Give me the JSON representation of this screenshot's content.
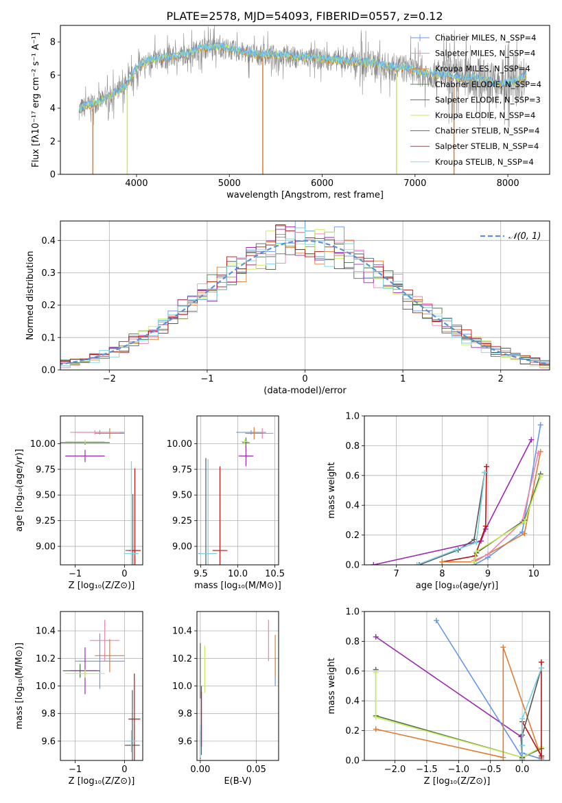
{
  "figure_title": "PLATE=2578, MJD=54093, FIBERID=0557, z=0.12",
  "colors": {
    "chabrier_miles": "#6495ed",
    "salpeter_miles": "#ee82a8",
    "kroupa_miles": "#e07b30",
    "chabrier_elodie": "#4f6f4f",
    "salpeter_elodie": "#9a28b0",
    "kroupa_elodie": "#c8ec5a",
    "chabrier_stelib": "#555555",
    "salpeter_stelib": "#b51414",
    "kroupa_stelib": "#78d2e0",
    "gaussian": "#5b8fd6",
    "grid": "#b0b0b0"
  },
  "chart_data": [
    {
      "id": "spectrum",
      "type": "line",
      "xlabel": "wavelength [Angstrom, rest frame]",
      "ylabel": "Flux [fλ10⁻¹⁷ erg cm⁻² s⁻¹ A⁻¹]",
      "xlim": [
        3180,
        8450
      ],
      "ylim": [
        0,
        9
      ],
      "xticks": [
        4000,
        5000,
        6000,
        7000,
        8000
      ],
      "yticks": [
        0,
        2,
        4,
        6,
        8
      ],
      "grid": false,
      "legend_position": "right",
      "legend": [
        "Chabrier MILES, N_SSP=4",
        "Salpeter MILES, N_SSP=4",
        "Kroupa MILES, N_SSP=4",
        "Chabrier ELODIE, N_SSP=4",
        "Salpeter ELODIE, N_SSP=3",
        "Kroupa ELODIE, N_SSP=4",
        "Chabrier STELIB, N_SSP=4",
        "Salpeter STELIB, N_SSP=4",
        "Kroupa STELIB, N_SSP=4"
      ],
      "continuum": [
        [
          3380,
          3.9
        ],
        [
          3500,
          4.2
        ],
        [
          3650,
          4.5
        ],
        [
          3800,
          5.0
        ],
        [
          3900,
          5.4
        ],
        [
          4000,
          6.4
        ],
        [
          4150,
          6.9
        ],
        [
          4300,
          7.0
        ],
        [
          4500,
          7.2
        ],
        [
          4700,
          7.6
        ],
        [
          4900,
          7.7
        ],
        [
          5100,
          7.4
        ],
        [
          5300,
          7.2
        ],
        [
          5500,
          7.2
        ],
        [
          5700,
          7.1
        ],
        [
          5900,
          7.0
        ],
        [
          6100,
          6.9
        ],
        [
          6300,
          6.8
        ],
        [
          6500,
          6.7
        ],
        [
          6700,
          6.5
        ],
        [
          6900,
          6.4
        ],
        [
          7100,
          6.1
        ],
        [
          7300,
          6.0
        ],
        [
          7500,
          5.8
        ],
        [
          7700,
          5.8
        ],
        [
          7900,
          5.4
        ],
        [
          8000,
          5.5
        ],
        [
          8100,
          5.6
        ],
        [
          8200,
          6.0
        ]
      ],
      "dropouts": [
        {
          "x": 3530,
          "series": "kroupa_miles"
        },
        {
          "x": 3900,
          "series": "kroupa_elodie"
        },
        {
          "x": 5360,
          "series": "kroupa_miles"
        },
        {
          "x": 6800,
          "series": "kroupa_elodie"
        },
        {
          "x": 7420,
          "series": "kroupa_miles"
        }
      ]
    },
    {
      "id": "residuals",
      "type": "line",
      "xlabel": "(data-model)/error",
      "ylabel": "Normed distribution",
      "xlim": [
        -2.5,
        2.5
      ],
      "ylim": [
        0,
        0.46
      ],
      "xticks": [
        -2,
        -1,
        0,
        1,
        2
      ],
      "yticks": [
        0.0,
        0.1,
        0.2,
        0.3,
        0.4
      ],
      "grid": true,
      "legend_position": "top-right",
      "legend": [
        "𝒩(0, 1)"
      ],
      "bin_width": 0.1
    },
    {
      "id": "z_age",
      "type": "scatter",
      "xlabel": "Z [log₁₀(Z/Z⊙)]",
      "ylabel": "age  [log₁₀(age/yr)]",
      "xlim": [
        -1.3,
        0.37
      ],
      "ylim": [
        8.82,
        10.27
      ],
      "xticks": [
        -1,
        0
      ],
      "yticks": [
        9.0,
        9.25,
        9.5,
        9.75,
        10.0
      ],
      "grid": true,
      "points": [
        {
          "series": "chabrier_miles",
          "x": -0.5,
          "y": 10.11,
          "xerr": 0.5,
          "yerr": 0.02
        },
        {
          "series": "salpeter_miles",
          "x": -0.6,
          "y": 10.11,
          "xerr": 0.5,
          "yerr": 0.02
        },
        {
          "series": "kroupa_miles",
          "x": -0.3,
          "y": 10.1,
          "xerr": 0.3,
          "yerr": 0.05
        },
        {
          "series": "chabrier_elodie",
          "x": -0.8,
          "y": 10.01,
          "xerr": 0.5,
          "yerr": 0.02
        },
        {
          "series": "salpeter_elodie",
          "x": -0.8,
          "y": 9.88,
          "xerr": 0.4,
          "yerr": 0.06
        },
        {
          "series": "kroupa_elodie",
          "x": -0.8,
          "y": 10.02,
          "xerr": 0.4,
          "yerr": 0.02
        },
        {
          "series": "chabrier_stelib",
          "x": 0.17,
          "y": 8.96,
          "xerr": 0.15,
          "yerr": 0.55
        },
        {
          "series": "salpeter_stelib",
          "x": 0.21,
          "y": 8.96,
          "xerr": 0.12,
          "yerr": 0.8
        },
        {
          "series": "kroupa_stelib",
          "x": 0.14,
          "y": 8.93,
          "xerr": 0.15,
          "yerr": 0.9
        }
      ]
    },
    {
      "id": "mass_age",
      "type": "scatter",
      "xlabel": "mass [log₁₀(M/M⊙)]",
      "ylabel": "",
      "xlim": [
        9.45,
        10.55
      ],
      "ylim": [
        8.82,
        10.27
      ],
      "xticks": [
        9.5,
        10.0,
        10.5
      ],
      "yticks": [
        9.0,
        9.25,
        9.5,
        9.75,
        10.0
      ],
      "grid": true,
      "points": [
        {
          "series": "chabrier_miles",
          "x": 10.18,
          "y": 10.11,
          "xerr": 0.2,
          "yerr": 0.02
        },
        {
          "series": "salpeter_miles",
          "x": 10.33,
          "y": 10.1,
          "xerr": 0.15,
          "yerr": 0.05
        },
        {
          "series": "kroupa_miles",
          "x": 10.22,
          "y": 10.1,
          "xerr": 0.12,
          "yerr": 0.06
        },
        {
          "series": "chabrier_elodie",
          "x": 10.11,
          "y": 10.01,
          "xerr": 0.05,
          "yerr": 0.05
        },
        {
          "series": "salpeter_elodie",
          "x": 10.11,
          "y": 9.88,
          "xerr": 0.1,
          "yerr": 0.1
        },
        {
          "series": "kroupa_elodie",
          "x": 10.09,
          "y": 10.02,
          "xerr": 0.05,
          "yerr": 0.02
        },
        {
          "series": "chabrier_stelib",
          "x": 9.57,
          "y": 8.93,
          "xerr": 0.1,
          "yerr": 0.93
        },
        {
          "series": "salpeter_stelib",
          "x": 9.76,
          "y": 8.96,
          "xerr": 0.1,
          "yerr": 0.82
        },
        {
          "series": "kroupa_stelib",
          "x": 9.6,
          "y": 8.93,
          "xerr": 0.12,
          "yerr": 0.92
        }
      ]
    },
    {
      "id": "age_weight",
      "type": "line",
      "xlabel": "age  [log₁₀(age/yr)]",
      "ylabel": "mass weight",
      "xlim": [
        6.3,
        10.35
      ],
      "ylim": [
        0,
        1.0
      ],
      "xticks": [
        7,
        8,
        9,
        10
      ],
      "yticks": [
        0.0,
        0.2,
        0.4,
        0.6,
        0.8,
        1.0
      ],
      "grid": true,
      "series": [
        {
          "key": "salpeter_elodie",
          "x": [
            6.5,
            8.85,
            8.95,
            9.95
          ],
          "y": [
            0.0,
            0.16,
            0.24,
            0.84
          ]
        },
        {
          "key": "salpeter_stelib",
          "x": [
            8.0,
            8.72,
            8.95,
            8.97
          ],
          "y": [
            0.02,
            0.06,
            0.26,
            0.66
          ]
        },
        {
          "key": "chabrier_stelib",
          "x": [
            7.5,
            8.35,
            8.7,
            8.93
          ],
          "y": [
            0.0,
            0.1,
            0.17,
            0.62
          ]
        },
        {
          "key": "kroupa_stelib",
          "x": [
            7.45,
            8.3,
            8.75,
            8.93
          ],
          "y": [
            0.0,
            0.1,
            0.15,
            0.62
          ]
        },
        {
          "key": "chabrier_miles",
          "x": [
            8.7,
            9.0,
            9.75,
            10.15
          ],
          "y": [
            0.0,
            0.05,
            0.22,
            0.94
          ]
        },
        {
          "key": "kroupa_miles",
          "x": [
            8.0,
            8.7,
            9.8,
            10.15
          ],
          "y": [
            0.02,
            0.02,
            0.21,
            0.76
          ]
        },
        {
          "key": "salpeter_miles",
          "x": [
            8.7,
            9.0,
            9.75,
            10.1
          ],
          "y": [
            0.03,
            0.07,
            0.29,
            0.75
          ]
        },
        {
          "key": "chabrier_elodie",
          "x": [
            8.7,
            8.75,
            9.8,
            10.15
          ],
          "y": [
            0.02,
            0.08,
            0.3,
            0.61
          ]
        },
        {
          "key": "kroupa_elodie",
          "x": [
            8.7,
            8.75,
            9.8,
            10.15
          ],
          "y": [
            0.02,
            0.09,
            0.29,
            0.59
          ]
        }
      ]
    },
    {
      "id": "z_mass",
      "type": "scatter",
      "xlabel": "Z [log₁₀(Z/Z⊙)]",
      "ylabel": "mass [log₁₀(M/M⊙)]",
      "xlim": [
        -1.3,
        0.37
      ],
      "ylim": [
        9.46,
        10.54
      ],
      "xticks": [
        -1,
        0
      ],
      "yticks": [
        9.6,
        9.8,
        10.0,
        10.2,
        10.4
      ],
      "grid": true,
      "points": [
        {
          "series": "chabrier_miles",
          "x": -0.5,
          "y": 10.18,
          "xerr": 0.5,
          "yerr": 0.2
        },
        {
          "series": "salpeter_miles",
          "x": -0.4,
          "y": 10.33,
          "xerr": 0.3,
          "yerr": 0.15
        },
        {
          "series": "kroupa_miles",
          "x": -0.3,
          "y": 10.22,
          "xerr": 0.3,
          "yerr": 0.12
        },
        {
          "series": "chabrier_elodie",
          "x": -0.9,
          "y": 10.11,
          "xerr": 0.35,
          "yerr": 0.05
        },
        {
          "series": "salpeter_elodie",
          "x": -0.8,
          "y": 10.11,
          "xerr": 0.3,
          "yerr": 0.17
        },
        {
          "series": "kroupa_elodie",
          "x": -0.8,
          "y": 10.09,
          "xerr": 0.4,
          "yerr": 0.03
        },
        {
          "series": "chabrier_stelib",
          "x": 0.16,
          "y": 9.57,
          "xerr": 0.15,
          "yerr": 0.4
        },
        {
          "series": "salpeter_stelib",
          "x": 0.2,
          "y": 9.76,
          "xerr": 0.12,
          "yerr": 0.33
        },
        {
          "series": "kroupa_stelib",
          "x": 0.14,
          "y": 9.6,
          "xerr": 0.12,
          "yerr": 0.08
        }
      ]
    },
    {
      "id": "ebv_mass",
      "type": "scatter",
      "xlabel": "E(B-V)",
      "ylabel": "",
      "xlim": [
        -0.003,
        0.07
      ],
      "ylim": [
        9.46,
        10.54
      ],
      "xticks": [
        0.0,
        0.05
      ],
      "yticks": [
        9.6,
        9.8,
        10.0,
        10.2,
        10.4
      ],
      "grid": true,
      "points": [
        {
          "series": "chabrier_miles",
          "x": 0.067,
          "y": 10.1,
          "xerr": 0,
          "yerr": 0.1
        },
        {
          "series": "salpeter_miles",
          "x": 0.061,
          "y": 10.33,
          "xerr": 0,
          "yerr": 0.15
        },
        {
          "series": "kroupa_miles",
          "x": 0.067,
          "y": 10.22,
          "xerr": 0,
          "yerr": 0.15
        },
        {
          "series": "chabrier_elodie",
          "x": 0.0,
          "y": 10.11,
          "xerr": 0,
          "yerr": 0.2
        },
        {
          "series": "salpeter_elodie",
          "x": 0.001,
          "y": 9.75,
          "xerr": 0,
          "yerr": 0.25
        },
        {
          "series": "kroupa_elodie",
          "x": 0.004,
          "y": 10.12,
          "xerr": 0,
          "yerr": 0.17
        },
        {
          "series": "chabrier_stelib",
          "x": 0.0,
          "y": 9.57,
          "xerr": 0,
          "yerr": 0.1
        },
        {
          "series": "salpeter_stelib",
          "x": 0.001,
          "y": 9.76,
          "xerr": 0,
          "yerr": 0.2
        },
        {
          "series": "kroupa_stelib",
          "x": 0.0,
          "y": 9.6,
          "xerr": 0,
          "yerr": 0.12
        }
      ]
    },
    {
      "id": "z_weight",
      "type": "line",
      "xlabel": "Z [log₁₀(Z/Z⊙)]",
      "ylabel": "mass weight",
      "xlim": [
        -2.48,
        0.43
      ],
      "ylim": [
        0,
        1.0
      ],
      "xticks": [
        -2.0,
        -1.5,
        -1.0,
        -0.5,
        0.0
      ],
      "yticks": [
        0.0,
        0.2,
        0.4,
        0.6,
        0.8,
        1.0
      ],
      "grid": true,
      "series": [
        {
          "key": "salpeter_elodie",
          "x": [
            -2.3,
            -0.02,
            0.0,
            0.0
          ],
          "y": [
            0.83,
            0.16,
            0.01,
            0.0
          ]
        },
        {
          "key": "chabrier_miles",
          "x": [
            -1.35,
            0.0,
            0.0,
            0.3
          ],
          "y": [
            0.94,
            0.02,
            0.05,
            0.01
          ]
        },
        {
          "key": "chabrier_elodie",
          "x": [
            -2.3,
            -2.3,
            0.0,
            0.3
          ],
          "y": [
            0.61,
            0.3,
            0.02,
            0.08
          ]
        },
        {
          "key": "kroupa_elodie",
          "x": [
            -2.3,
            -2.3,
            0.0,
            0.3
          ],
          "y": [
            0.59,
            0.29,
            0.02,
            0.09
          ]
        },
        {
          "key": "kroupa_miles",
          "x": [
            -2.3,
            -0.3,
            -0.3,
            0.3
          ],
          "y": [
            0.21,
            0.02,
            0.76,
            0.02
          ]
        },
        {
          "key": "salpeter_stelib",
          "x": [
            0.0,
            0.0,
            0.3,
            0.3
          ],
          "y": [
            0.02,
            0.26,
            0.03,
            0.66
          ]
        },
        {
          "key": "chabrier_stelib",
          "x": [
            0.0,
            0.0,
            0.0,
            0.3
          ],
          "y": [
            0.01,
            0.1,
            0.17,
            0.62
          ]
        },
        {
          "key": "kroupa_stelib",
          "x": [
            0.0,
            0.0,
            0.0,
            0.3
          ],
          "y": [
            0.01,
            0.1,
            0.28,
            0.62
          ]
        }
      ]
    }
  ]
}
